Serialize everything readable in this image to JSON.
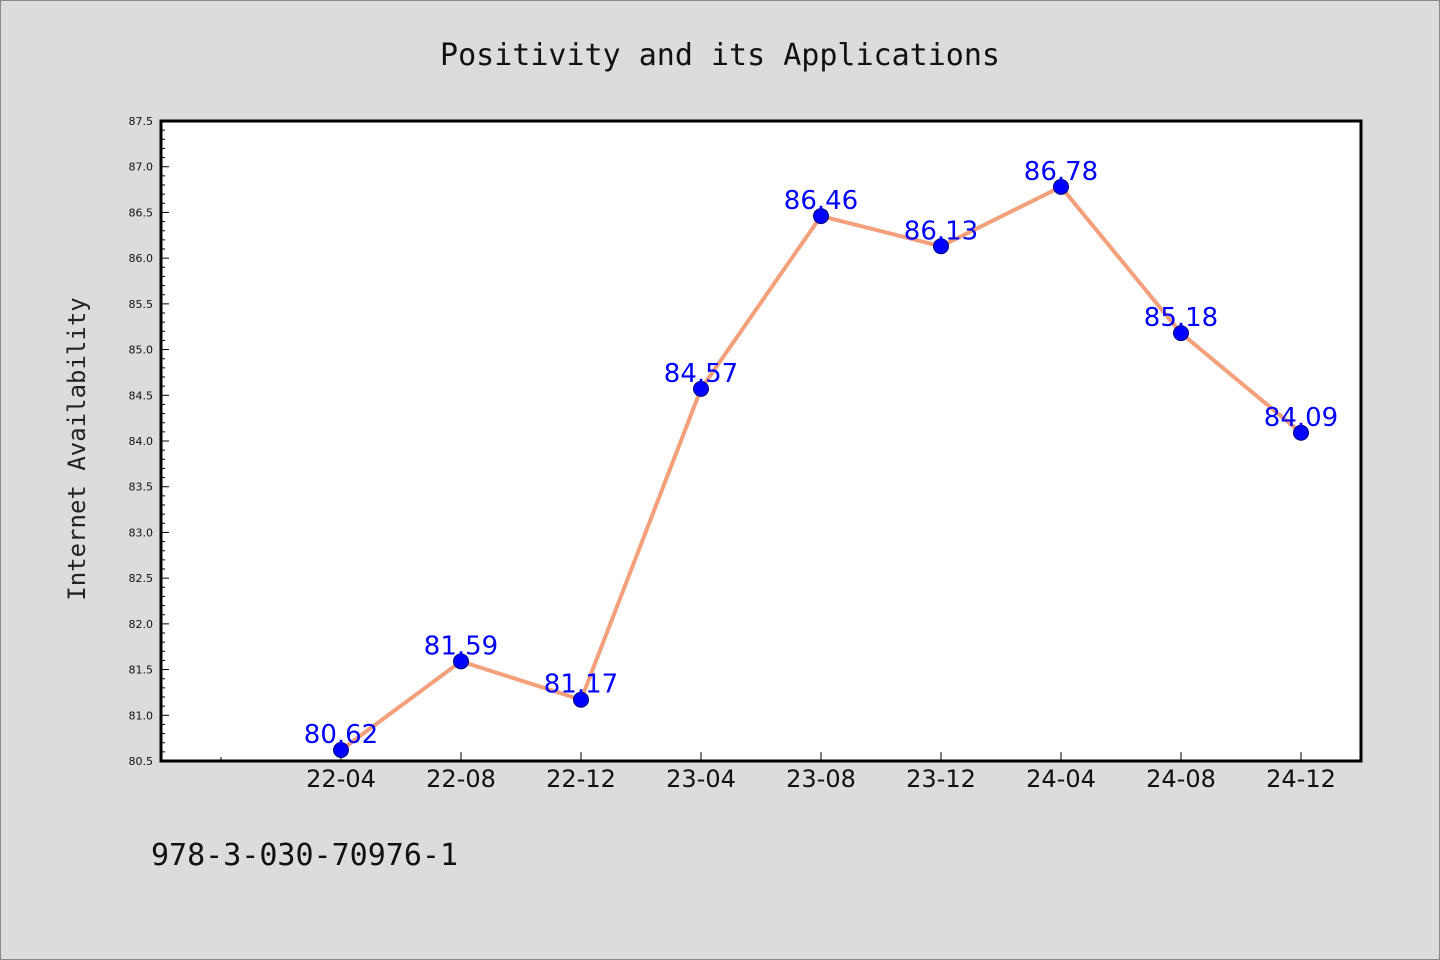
{
  "chart_data": {
    "type": "line",
    "title": "Positivity and its Applications",
    "xlabel": "",
    "ylabel": "Internet Availability",
    "categories": [
      "22-04",
      "22-08",
      "22-12",
      "23-04",
      "23-08",
      "23-12",
      "24-04",
      "24-08",
      "24-12"
    ],
    "series": [
      {
        "values": [
          80.62,
          81.59,
          81.17,
          84.57,
          86.46,
          86.13,
          86.78,
          85.18,
          84.09
        ],
        "data_labels": [
          "80.62",
          "81.59",
          "81.17",
          "84.57",
          "86.46",
          "86.13",
          "86.78",
          "85.18",
          "84.09"
        ],
        "line_color": "#f4a07a",
        "marker_color": "#0000ff"
      }
    ],
    "ylim": [
      80.5,
      87.5
    ],
    "y_ticks": [
      "80.5",
      "81.0",
      "81.5",
      "82.0",
      "82.5",
      "83.0",
      "83.5",
      "84.0",
      "84.5",
      "85.0",
      "85.5",
      "86.0",
      "86.5",
      "87.0",
      "87.5"
    ],
    "grid": false,
    "legend": "none"
  },
  "footer": {
    "text": "978-3-030-70976-1"
  },
  "colors": {
    "figure_background": "#dcdcdc",
    "plot_background": "#ffffff",
    "line": "#f4a07a",
    "marker": "#0000ff",
    "data_label": "#0000ff"
  }
}
